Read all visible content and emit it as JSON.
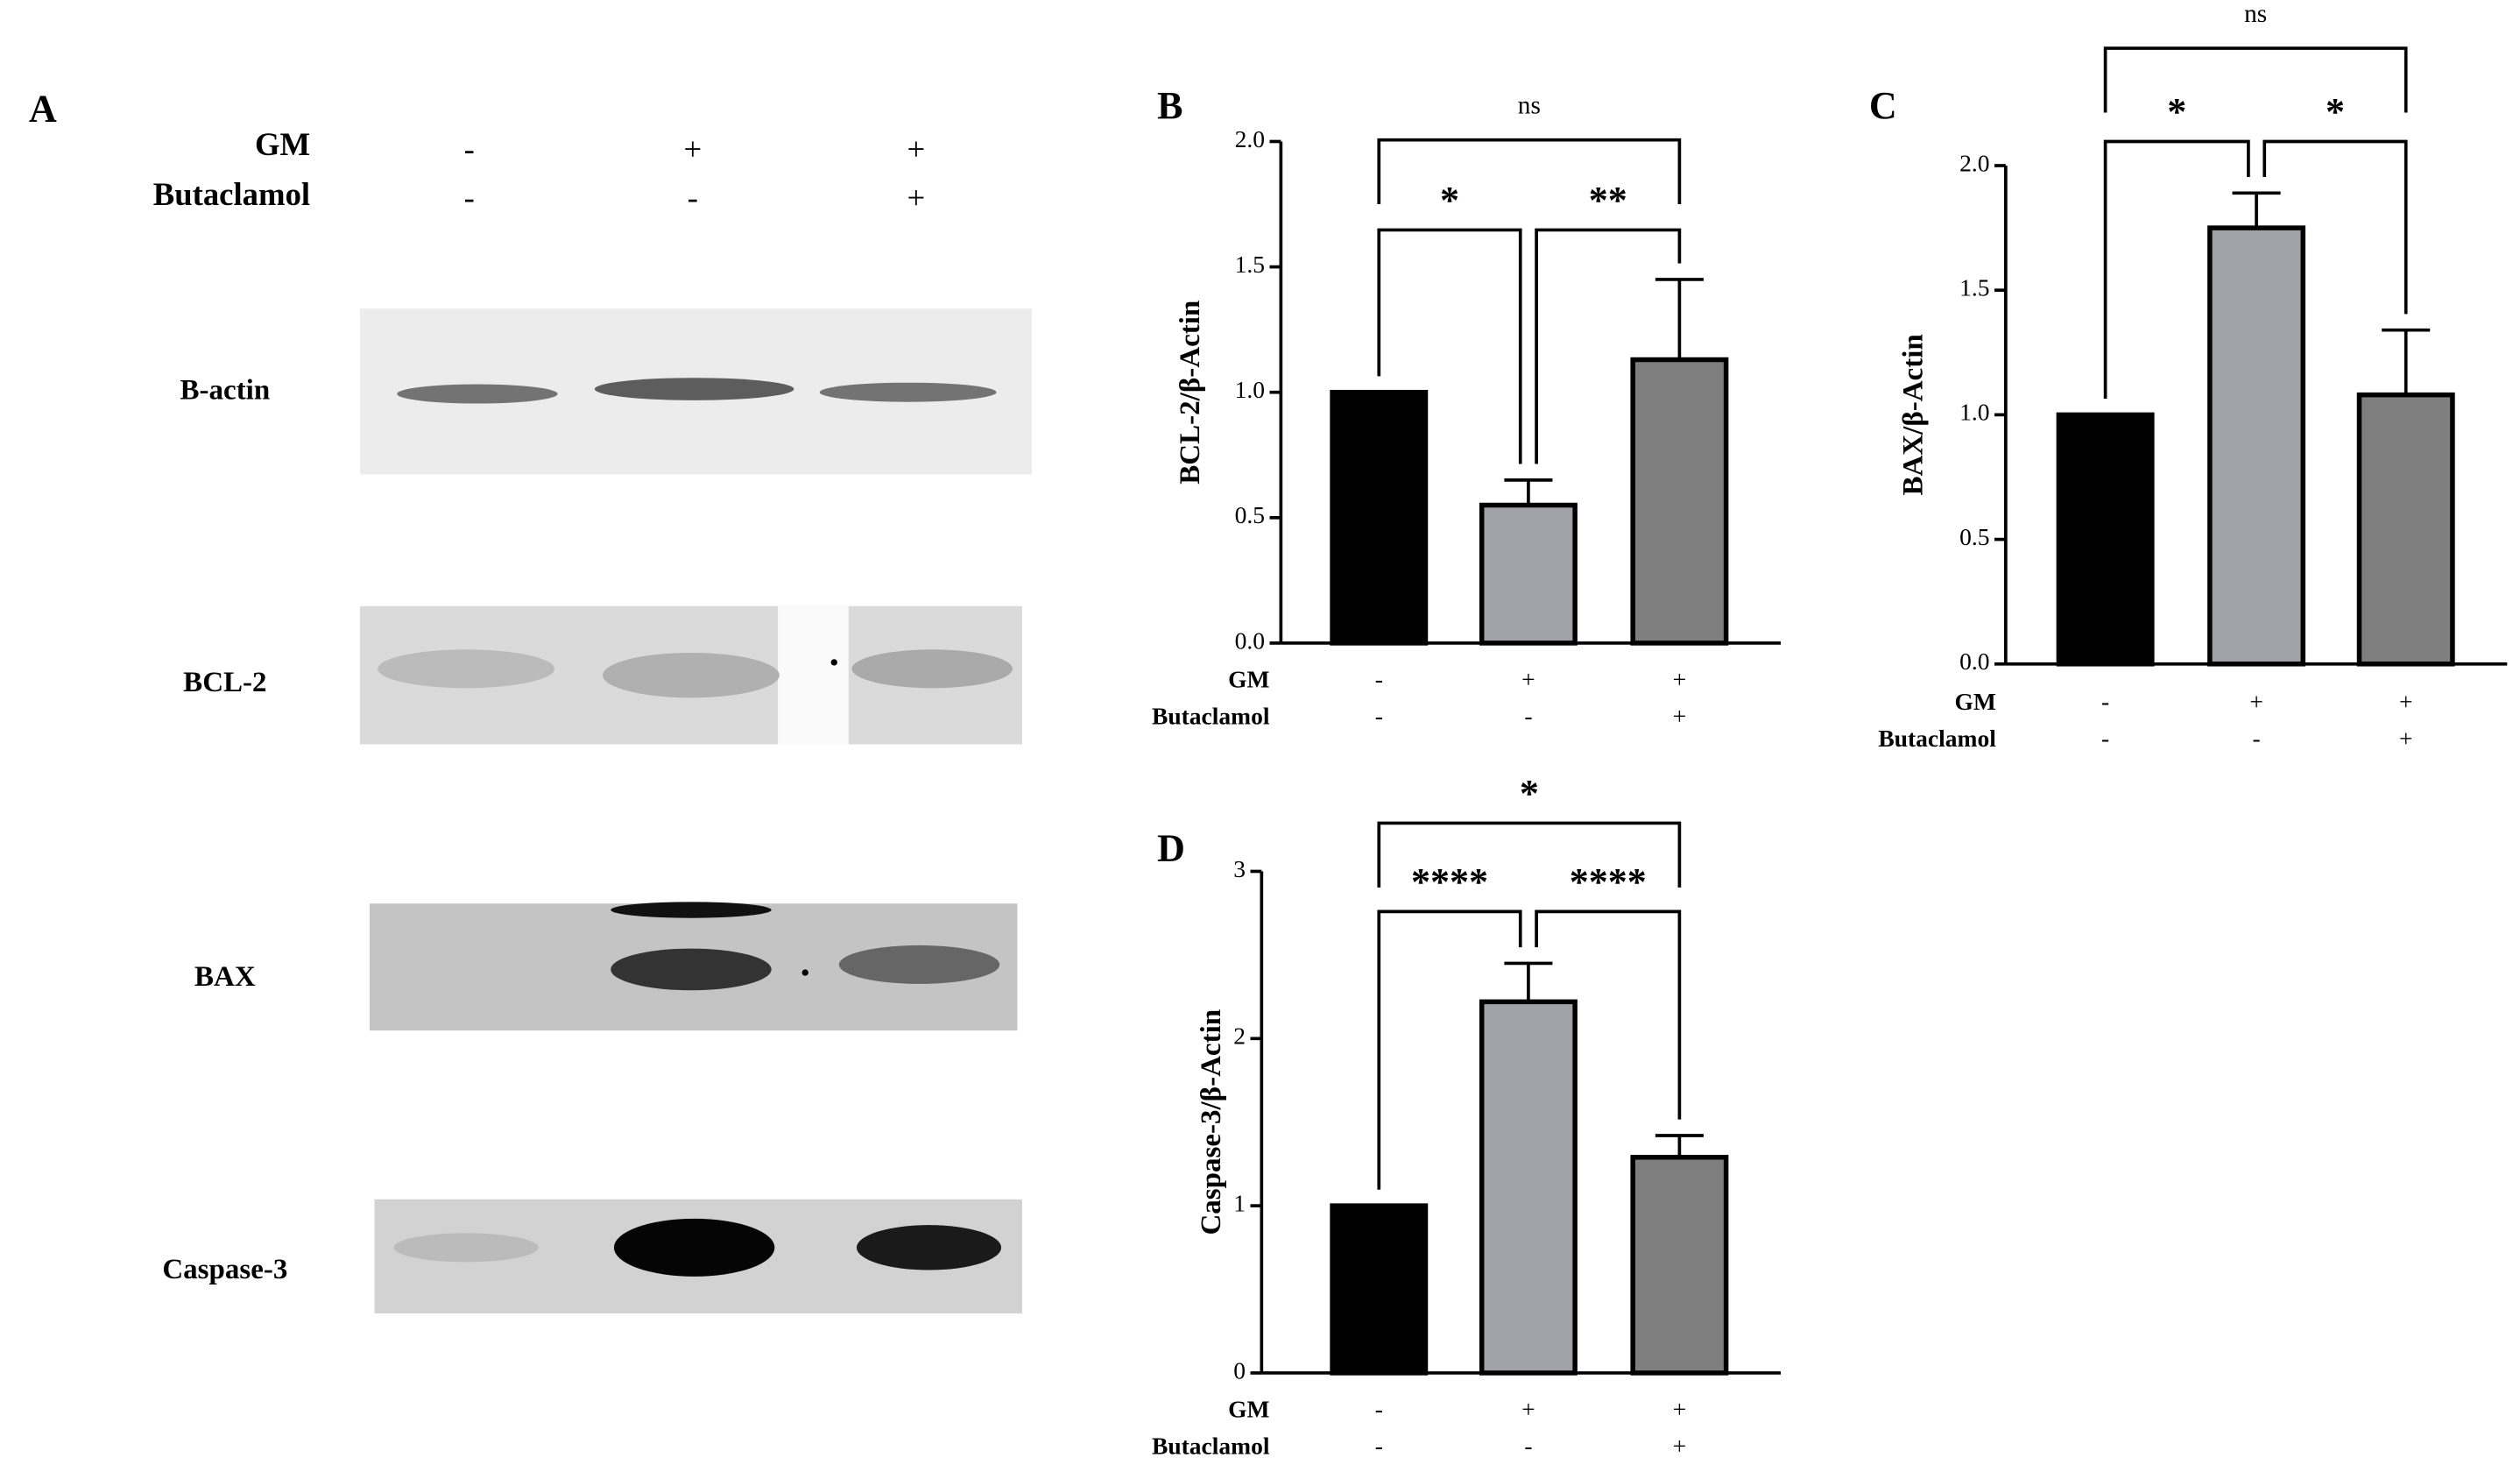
{
  "blot": {
    "panel": "A",
    "conditions": [
      {
        "name": "GM",
        "signs": [
          "-",
          "+",
          "+"
        ]
      },
      {
        "name": "Butaclamol",
        "signs": [
          "-",
          "-",
          "+"
        ]
      }
    ],
    "rows": [
      "B-actin",
      "BCL-2",
      "BAX",
      "Caspase-3"
    ]
  },
  "chart_data": [
    {
      "type": "bar",
      "panel": "B",
      "y_label": "BCL-2/β-Actin",
      "conditions": [
        {
          "name": "GM",
          "signs": [
            "-",
            "+",
            "+"
          ]
        },
        {
          "name": "Butaclamol",
          "signs": [
            "-",
            "-",
            "+"
          ]
        }
      ],
      "values": [
        1.0,
        0.55,
        1.13
      ],
      "errors": [
        0,
        0.1,
        0.32
      ],
      "colors": [
        "#000000",
        "#a1a1a8",
        "#7f7f7f"
      ],
      "ylim": [
        0,
        2
      ],
      "yticks": [
        {
          "value": 0,
          "label": "0.0"
        },
        {
          "value": 0.5,
          "label": "0.5"
        },
        {
          "value": 1,
          "label": "1.0"
        },
        {
          "value": 1.5,
          "label": "1.5"
        },
        {
          "value": 2,
          "label": "2.0"
        }
      ],
      "comparisons": [
        {
          "from": 0,
          "to": 2,
          "label": "ns"
        },
        {
          "from": 0,
          "to": 1,
          "label": "*"
        },
        {
          "from": 1,
          "to": 2,
          "label": "**"
        }
      ]
    },
    {
      "type": "bar",
      "panel": "C",
      "y_label": "BAX/β-Actin",
      "conditions": [
        {
          "name": "GM",
          "signs": [
            "-",
            "+",
            "+"
          ]
        },
        {
          "name": "Butaclamol",
          "signs": [
            "-",
            "-",
            "+"
          ]
        }
      ],
      "values": [
        1.0,
        1.75,
        1.08
      ],
      "errors": [
        0,
        0.14,
        0.26
      ],
      "colors": [
        "#000000",
        "#a1a1a8",
        "#7f7f7f"
      ],
      "ylim": [
        0,
        2
      ],
      "yticks": [
        {
          "value": 0,
          "label": "0.0"
        },
        {
          "value": 0.5,
          "label": "0.5"
        },
        {
          "value": 1,
          "label": "1.0"
        },
        {
          "value": 1.5,
          "label": "1.5"
        },
        {
          "value": 2,
          "label": "2.0"
        }
      ],
      "comparisons": [
        {
          "from": 0,
          "to": 2,
          "label": "ns"
        },
        {
          "from": 0,
          "to": 1,
          "label": "*"
        },
        {
          "from": 1,
          "to": 2,
          "label": "*"
        }
      ]
    },
    {
      "type": "bar",
      "panel": "D",
      "y_label": "Caspase-3/β-Actin",
      "conditions": [
        {
          "name": "GM",
          "signs": [
            "-",
            "+",
            "+"
          ]
        },
        {
          "name": "Butaclamol",
          "signs": [
            "-",
            "-",
            "+"
          ]
        }
      ],
      "values": [
        1.0,
        2.22,
        1.29
      ],
      "errors": [
        0,
        0.23,
        0.13
      ],
      "colors": [
        "#000000",
        "#a1a1a8",
        "#7f7f7f"
      ],
      "ylim": [
        0,
        3
      ],
      "yticks": [
        0,
        1,
        2,
        3
      ],
      "comparisons": [
        {
          "from": 0,
          "to": 2,
          "label": "*"
        },
        {
          "from": 0,
          "to": 1,
          "label": "****"
        },
        {
          "from": 1,
          "to": 2,
          "label": "****"
        }
      ]
    }
  ]
}
